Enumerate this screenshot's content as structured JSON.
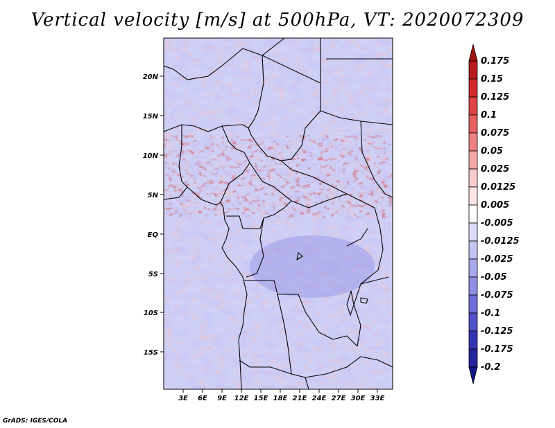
{
  "title": "Vertical velocity [m/s] at 500hPa, VT: 2020072309",
  "credit": "GrADS: IGES/COLA",
  "map": {
    "lat_ticks": [
      "20N",
      "15N",
      "10N",
      "5N",
      "EQ",
      "5S",
      "10S",
      "15S"
    ],
    "lon_ticks": [
      "3E",
      "6E",
      "9E",
      "12E",
      "15E",
      "18E",
      "21E",
      "24E",
      "27E",
      "30E",
      "33E"
    ]
  },
  "colorbar": {
    "levels": [
      "0.175",
      "0.15",
      "0.125",
      "0.1",
      "0.075",
      "0.05",
      "0.025",
      "0.0125",
      "0.005",
      "-0.005",
      "-0.0125",
      "-0.025",
      "-0.05",
      "-0.075",
      "-0.1",
      "-0.125",
      "-0.175",
      "-0.2"
    ],
    "colors": [
      "#a01010",
      "#b81c1c",
      "#cf2b2b",
      "#dd4444",
      "#e66060",
      "#ee8282",
      "#f4a8a8",
      "#f9cccc",
      "#fde6e6",
      "#ffffff",
      "#dcdcf8",
      "#c4c4f2",
      "#a8a8ec",
      "#8e8ee2",
      "#6e6ed8",
      "#5050c8",
      "#3535b4",
      "#24249c",
      "#151585"
    ]
  }
}
